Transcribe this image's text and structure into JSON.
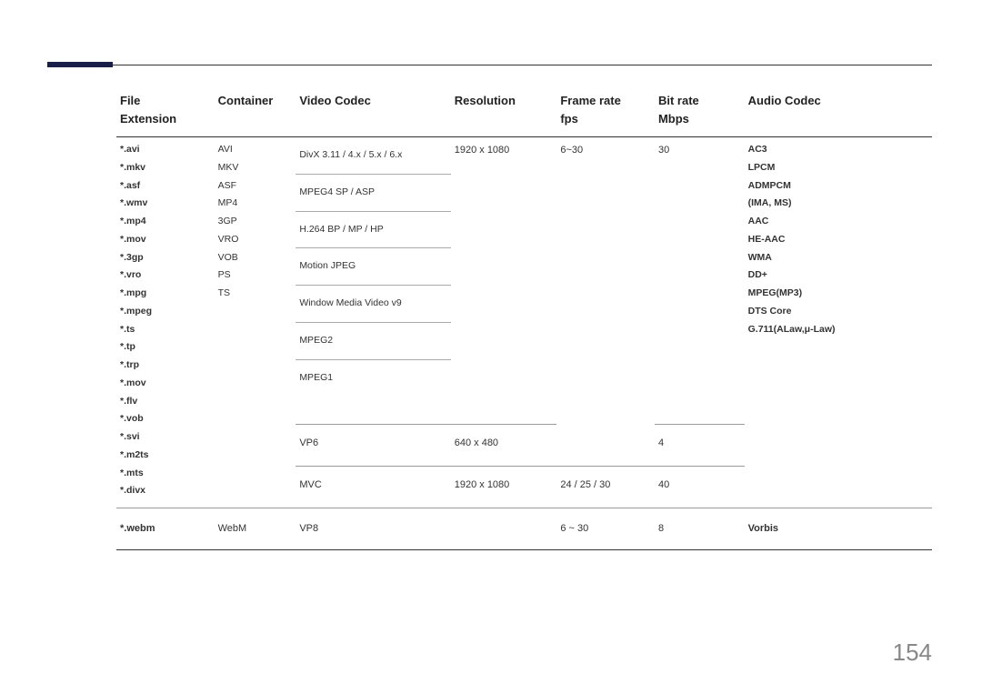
{
  "page_number": "154",
  "headers": {
    "file_ext": "File Extension",
    "container": "Container",
    "video_codec": "Video Codec",
    "resolution": "Resolution",
    "frame_rate": "Frame rate fps",
    "bit_rate": "Bit rate Mbps",
    "audio_codec": "Audio Codec"
  },
  "col_widths": [
    "12%",
    "10%",
    "19%",
    "13%",
    "12%",
    "11%",
    "23%"
  ],
  "file_extensions": [
    "*.avi",
    "*.mkv",
    "*.asf",
    "*.wmv",
    "*.mp4",
    "*.mov",
    "*.3gp",
    "*.vro",
    "*.mpg",
    "*.mpeg",
    "*.ts",
    "*.tp",
    "*.trp",
    "*.mov",
    "*.flv",
    "*.vob",
    "*.svi",
    "*.m2ts",
    "*.mts",
    "*.divx"
  ],
  "containers": [
    "AVI",
    "MKV",
    "ASF",
    "MP4",
    "3GP",
    "VRO",
    "VOB",
    "PS",
    "TS"
  ],
  "audio_codecs": [
    "AC3",
    "LPCM",
    "ADMPCM",
    "(IMA, MS)",
    "AAC",
    "HE-AAC",
    "WMA",
    "DD+",
    "MPEG(MP3)",
    "DTS Core",
    "G.711(ALaw,μ-Law)"
  ],
  "video_rows": [
    {
      "codec": "DivX 3.11 / 4.x / 5.x / 6.x",
      "res": "1920 x 1080",
      "fps": "6~30",
      "bit": "30"
    },
    {
      "codec": "MPEG4 SP / ASP",
      "res": "",
      "fps": "",
      "bit": ""
    },
    {
      "codec": "H.264 BP / MP / HP",
      "res": "",
      "fps": "",
      "bit": ""
    },
    {
      "codec": "Motion JPEG",
      "res": "",
      "fps": "",
      "bit": ""
    },
    {
      "codec": "Window Media Video v9",
      "res": "",
      "fps": "",
      "bit": ""
    },
    {
      "codec": "MPEG2",
      "res": "",
      "fps": "",
      "bit": ""
    },
    {
      "codec": "MPEG1",
      "res": "",
      "fps": "",
      "bit": ""
    }
  ],
  "vp6_row": {
    "codec": "VP6",
    "res": "640 x 480",
    "fps": "",
    "bit": "4"
  },
  "mvc_row": {
    "codec": "MVC",
    "res": "1920 x 1080",
    "fps": "24 / 25 / 30",
    "bit": "40"
  },
  "webm_row": {
    "ext": "*.webm",
    "container": "WebM",
    "codec": "VP8",
    "res": "",
    "fps": "6 ~ 30",
    "bit": "8",
    "audio": "Vorbis"
  }
}
